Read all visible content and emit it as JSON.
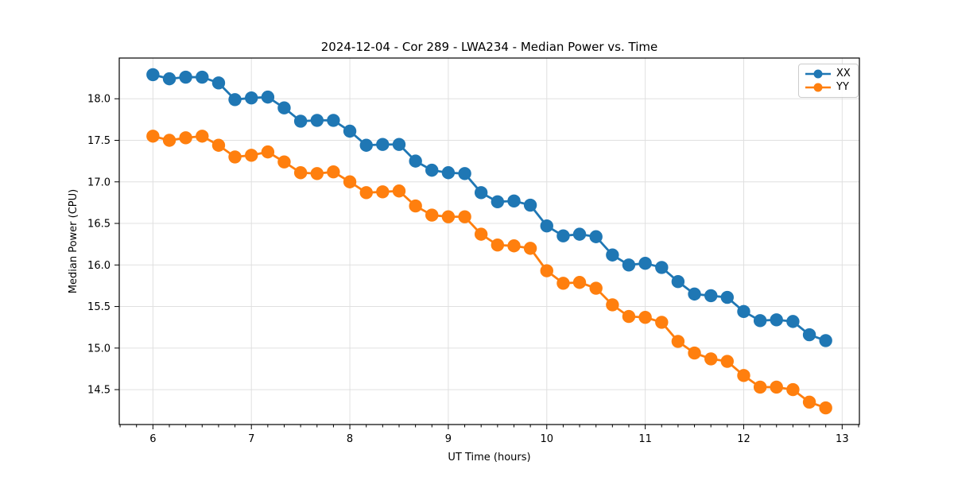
{
  "chart_data": {
    "type": "line",
    "title": "2024-12-04 - Cor 289 - LWA234 - Median Power vs. Time",
    "xlabel": "UT Time (hours)",
    "ylabel": "Median Power (CPU)",
    "xlim": [
      5.658,
      13.175
    ],
    "ylim": [
      14.08,
      18.49
    ],
    "x_major_ticks": [
      6,
      7,
      8,
      9,
      10,
      11,
      12,
      13
    ],
    "x_minor_step": 0.1667,
    "y_major_ticks": [
      14.5,
      15.0,
      15.5,
      16.0,
      16.5,
      17.0,
      17.5,
      18.0
    ],
    "grid": true,
    "legend_position": "upper right",
    "marker": "circle",
    "background": "#ffffff",
    "grid_color": "#e0e0e0",
    "x": [
      6.0,
      6.167,
      6.333,
      6.5,
      6.667,
      6.833,
      7.0,
      7.167,
      7.333,
      7.5,
      7.667,
      7.833,
      8.0,
      8.167,
      8.333,
      8.5,
      8.667,
      8.833,
      9.0,
      9.167,
      9.333,
      9.5,
      9.667,
      9.833,
      10.0,
      10.167,
      10.333,
      10.5,
      10.667,
      10.833,
      11.0,
      11.167,
      11.333,
      11.5,
      11.667,
      11.833,
      12.0,
      12.167,
      12.333,
      12.5,
      12.667,
      12.833
    ],
    "series": [
      {
        "name": "XX",
        "color": "#1f77b4",
        "values": [
          18.29,
          18.24,
          18.26,
          18.26,
          18.19,
          17.99,
          18.01,
          18.02,
          17.89,
          17.73,
          17.74,
          17.74,
          17.61,
          17.44,
          17.45,
          17.45,
          17.25,
          17.14,
          17.11,
          17.1,
          16.87,
          16.76,
          16.77,
          16.72,
          16.47,
          16.35,
          16.37,
          16.34,
          16.12,
          16.0,
          16.02,
          15.97,
          15.8,
          15.65,
          15.63,
          15.61,
          15.44,
          15.33,
          15.34,
          15.32,
          15.16,
          15.09
        ]
      },
      {
        "name": "YY",
        "color": "#ff7f0e",
        "values": [
          17.55,
          17.5,
          17.53,
          17.55,
          17.44,
          17.3,
          17.32,
          17.36,
          17.24,
          17.11,
          17.1,
          17.12,
          17.0,
          16.87,
          16.88,
          16.89,
          16.71,
          16.6,
          16.58,
          16.58,
          16.37,
          16.24,
          16.23,
          16.2,
          15.93,
          15.78,
          15.79,
          15.72,
          15.52,
          15.38,
          15.37,
          15.31,
          15.08,
          14.94,
          14.87,
          14.84,
          14.67,
          14.53,
          14.53,
          14.5,
          14.35,
          14.28
        ]
      }
    ]
  }
}
